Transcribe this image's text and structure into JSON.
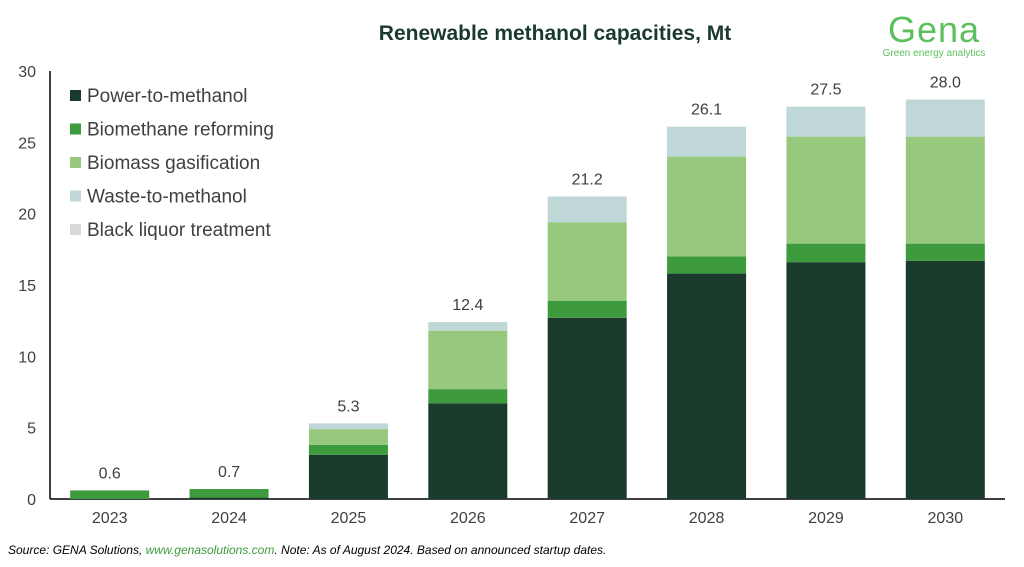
{
  "logo": {
    "word": "Gena",
    "tagline": "Green energy analytics"
  },
  "source": {
    "prefix": "Source: GENA Solutions, ",
    "link": "www.genasolutions.com",
    "suffix": ". Note: As of August 2024. Based on announced startup dates."
  },
  "chart_data": {
    "type": "bar",
    "stacked": true,
    "title": "Renewable methanol capacities, Mt",
    "xlabel": "",
    "ylabel": "",
    "ylim": [
      0,
      30
    ],
    "yticks": [
      0,
      5,
      10,
      15,
      20,
      25,
      30
    ],
    "grid": false,
    "legend_position": "top-left",
    "categories": [
      "2023",
      "2024",
      "2025",
      "2026",
      "2027",
      "2028",
      "2029",
      "2030"
    ],
    "series": [
      {
        "name": "Power-to-methanol",
        "color": "#1a3a2c",
        "values": [
          0.0,
          0.1,
          3.1,
          6.7,
          12.7,
          15.8,
          16.6,
          16.7
        ]
      },
      {
        "name": "Biomethane reforming",
        "color": "#3d9a3d",
        "values": [
          0.6,
          0.6,
          0.7,
          1.0,
          1.2,
          1.2,
          1.3,
          1.2
        ]
      },
      {
        "name": "Biomass gasification",
        "color": "#96c87e",
        "values": [
          0.0,
          0.0,
          1.1,
          4.1,
          5.5,
          7.0,
          7.5,
          7.5
        ]
      },
      {
        "name": "Waste-to-methanol",
        "color": "#c0d7d8",
        "values": [
          0.0,
          0.0,
          0.4,
          0.6,
          1.8,
          2.1,
          2.1,
          2.6
        ]
      },
      {
        "name": "Black liquor treatment",
        "color": "#d9d9d9",
        "values": [
          0,
          0,
          0,
          0,
          0,
          0,
          0,
          0
        ]
      }
    ],
    "totals": [
      "0.6",
      "0.7",
      "5.3",
      "12.4",
      "21.2",
      "26.1",
      "27.5",
      "28.0"
    ]
  }
}
